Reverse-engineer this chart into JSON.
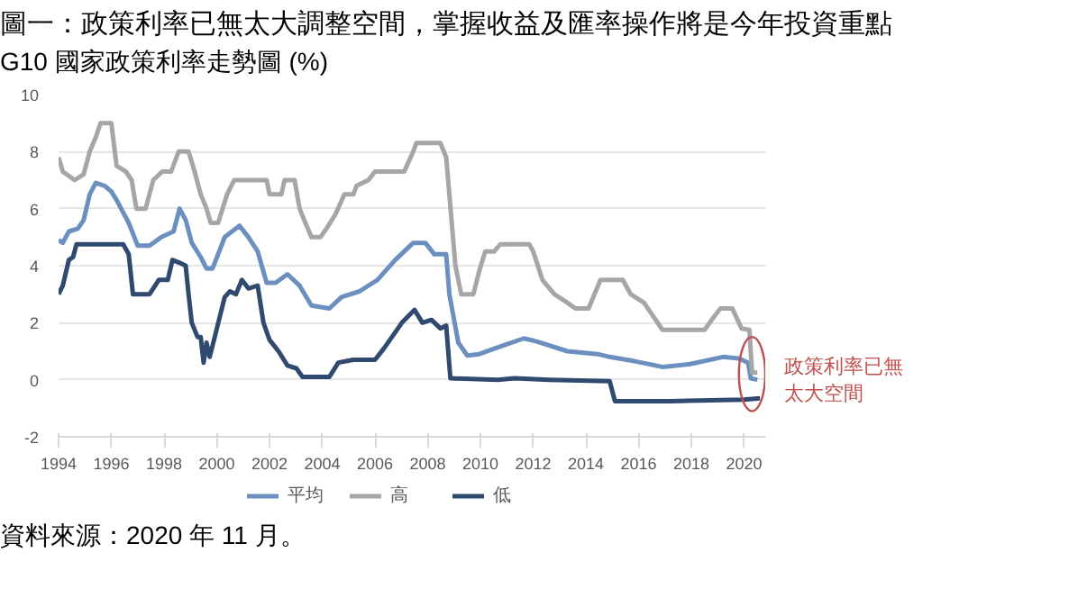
{
  "chart_data": {
    "type": "line",
    "title": "圖一：政策利率已無太大調整空間，掌握收益及匯率操作將是今年投資重點",
    "subtitle": "G10 國家政策利率走勢圖 (%)",
    "annotations": [
      {
        "text": "政策利率已無太大空間",
        "x": 2020.3,
        "y": 0.2
      },
      "資料來源：2020 年 11 月。"
    ],
    "xlim": [
      1994,
      2020.8
    ],
    "xticks": [
      1994,
      1996,
      1998,
      2000,
      2002,
      2004,
      2006,
      2008,
      2010,
      2012,
      2014,
      2016,
      2018,
      2020
    ],
    "ylim": [
      -2,
      10
    ],
    "yticks": [
      -2,
      0,
      2,
      4,
      6,
      8,
      10
    ],
    "grid": "y",
    "legend": "bottom",
    "line_style": "solid",
    "marker": "none",
    "series": [
      {
        "name": "平均",
        "color": "#6b8fbf",
        "x": [
          1994.0,
          1994.16,
          1994.39,
          1994.73,
          1994.95,
          1995.18,
          1995.41,
          1995.75,
          1996.0,
          1996.2,
          1996.66,
          1997.0,
          1997.45,
          1997.9,
          1998.36,
          1998.59,
          1998.82,
          1999.05,
          1999.39,
          1999.61,
          1999.84,
          2000.3,
          2000.86,
          2001.2,
          2001.55,
          2001.89,
          2002.23,
          2002.68,
          2003.14,
          2003.59,
          2004.27,
          2004.73,
          2005.41,
          2006.09,
          2006.77,
          2007.45,
          2007.91,
          2008.25,
          2008.7,
          2008.82,
          2009.16,
          2009.5,
          2009.95,
          2010.86,
          2011.65,
          2012.1,
          2013.3,
          2014.45,
          2014.9,
          2015.85,
          2016.9,
          2017.95,
          2019.2,
          2019.8,
          2020.15,
          2020.25,
          2020.5
        ],
        "values": [
          4.9,
          4.8,
          5.2,
          5.3,
          5.6,
          6.5,
          6.9,
          6.8,
          6.6,
          6.3,
          5.5,
          4.7,
          4.7,
          5.0,
          5.2,
          6.0,
          5.6,
          4.8,
          4.3,
          3.9,
          3.9,
          5.0,
          5.4,
          5.0,
          4.5,
          3.4,
          3.4,
          3.7,
          3.3,
          2.6,
          2.5,
          2.9,
          3.1,
          3.5,
          4.2,
          4.8,
          4.8,
          4.4,
          4.4,
          3.0,
          1.3,
          0.85,
          0.9,
          1.2,
          1.45,
          1.35,
          1.0,
          0.9,
          0.8,
          0.65,
          0.45,
          0.55,
          0.8,
          0.75,
          0.6,
          0.05,
          0.0
        ]
      },
      {
        "name": "高",
        "color": "#a6a6a6",
        "x": [
          1994.0,
          1994.16,
          1994.61,
          1994.95,
          1995.18,
          1995.41,
          1995.59,
          1996.0,
          1996.2,
          1996.55,
          1996.77,
          1996.95,
          1997.3,
          1997.59,
          1997.93,
          1998.27,
          1998.55,
          1998.93,
          1999.16,
          1999.39,
          1999.61,
          1999.77,
          2000.05,
          2000.39,
          2000.66,
          2001.89,
          2002.0,
          2002.45,
          2002.57,
          2002.95,
          2003.14,
          2003.36,
          2003.59,
          2003.93,
          2004.16,
          2004.5,
          2004.84,
          2005.18,
          2005.3,
          2005.75,
          2006.0,
          2007.11,
          2007.45,
          2007.57,
          2008.48,
          2008.7,
          2008.82,
          2009.05,
          2009.27,
          2009.73,
          2009.95,
          2010.18,
          2010.52,
          2010.75,
          2011.85,
          2012.0,
          2012.35,
          2012.8,
          2013.3,
          2013.6,
          2014.1,
          2014.55,
          2015.4,
          2015.7,
          2016.2,
          2016.5,
          2016.9,
          2018.5,
          2018.85,
          2019.1,
          2019.55,
          2019.9,
          2020.2,
          2020.3,
          2020.5
        ],
        "values": [
          7.8,
          7.3,
          7.0,
          7.2,
          8.0,
          8.5,
          9.0,
          9.0,
          7.5,
          7.3,
          7.0,
          6.0,
          6.0,
          7.0,
          7.3,
          7.3,
          8.0,
          8.0,
          7.3,
          6.5,
          6.0,
          5.5,
          5.5,
          6.5,
          7.0,
          7.0,
          6.5,
          6.5,
          7.0,
          7.0,
          6.0,
          5.5,
          5.0,
          5.0,
          5.3,
          5.8,
          6.5,
          6.5,
          6.8,
          7.0,
          7.3,
          7.3,
          8.0,
          8.3,
          8.3,
          7.8,
          6.5,
          4.0,
          3.0,
          3.0,
          3.8,
          4.5,
          4.5,
          4.75,
          4.75,
          4.5,
          3.5,
          3.0,
          2.7,
          2.5,
          2.5,
          3.5,
          3.5,
          3.0,
          2.7,
          2.3,
          1.75,
          1.75,
          2.2,
          2.5,
          2.5,
          1.8,
          1.75,
          0.25,
          0.25
        ]
      },
      {
        "name": "低",
        "color": "#2f4a6e",
        "x": [
          1994.0,
          1994.16,
          1994.39,
          1994.55,
          1994.68,
          1996.45,
          1996.66,
          1996.82,
          1997.45,
          1997.8,
          1998.14,
          1998.32,
          1998.59,
          1998.82,
          1998.93,
          1999.05,
          1999.27,
          1999.39,
          1999.5,
          1999.61,
          1999.73,
          1999.95,
          2000.3,
          2000.5,
          2000.73,
          2000.95,
          2001.2,
          2001.55,
          2001.77,
          2002.0,
          2002.34,
          2002.68,
          2003.02,
          2003.25,
          2004.27,
          2004.61,
          2005.18,
          2006.0,
          2006.34,
          2007.02,
          2007.5,
          2007.8,
          2008.14,
          2008.48,
          2008.7,
          2008.86,
          2010.66,
          2011.3,
          2012.6,
          2014.9,
          2015.1,
          2017.2,
          2020.0,
          2020.6
        ],
        "values": [
          3.0,
          3.3,
          4.2,
          4.3,
          4.75,
          4.75,
          4.4,
          3.0,
          3.0,
          3.5,
          3.5,
          4.2,
          4.1,
          4.0,
          3.0,
          2.0,
          1.5,
          1.5,
          0.6,
          1.3,
          0.8,
          1.6,
          2.9,
          3.1,
          3.0,
          3.5,
          3.2,
          3.3,
          2.0,
          1.4,
          1.0,
          0.5,
          0.4,
          0.1,
          0.1,
          0.6,
          0.7,
          0.7,
          1.1,
          2.0,
          2.45,
          2.0,
          2.1,
          1.8,
          1.9,
          0.05,
          0.0,
          0.05,
          0.0,
          -0.05,
          -0.75,
          -0.75,
          -0.7,
          -0.65
        ]
      }
    ]
  }
}
